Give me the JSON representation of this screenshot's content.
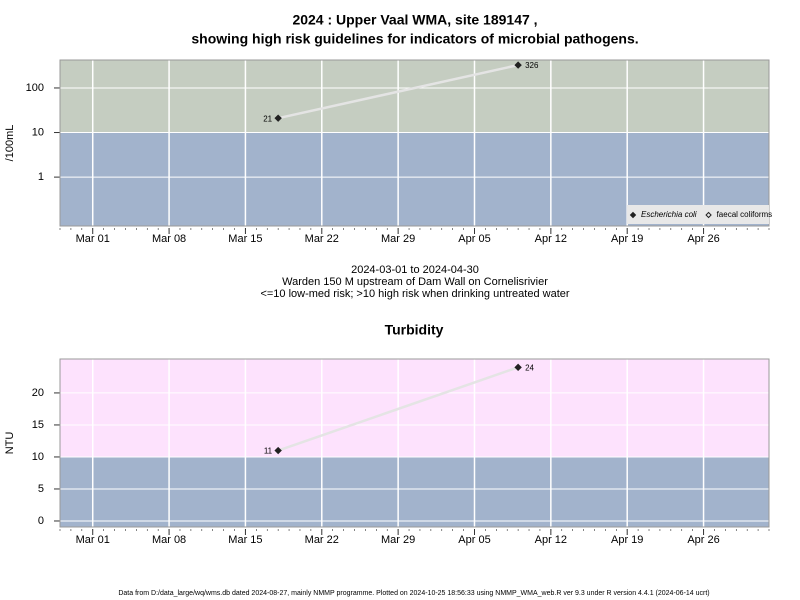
{
  "chart_data": [
    {
      "type": "line",
      "title": [
        "2024 : Upper Vaal WMA, site 189147 ,",
        "showing high risk guidelines for indicators of microbial pathogens."
      ],
      "ylabel": "/100mL",
      "log": true,
      "x": [
        "Mar 18",
        "Apr 09"
      ],
      "series": [
        {
          "name": "Escherichia coli",
          "color": "#222222",
          "marker": "filled",
          "italic": true,
          "values": [
            21,
            326
          ]
        },
        {
          "name": "faecal coliforms",
          "color": "#222222",
          "marker": "open",
          "italic": false,
          "values": [
            null,
            null
          ]
        }
      ],
      "xlim": [
        "Feb 27",
        "May 02"
      ],
      "xticks": [
        "Mar 01",
        "Mar 08",
        "Mar 15",
        "Mar 22",
        "Mar 29",
        "Apr 05",
        "Apr 12",
        "Apr 19",
        "Apr 26"
      ],
      "ylim": [
        0.08,
        424
      ],
      "yticks": [
        1,
        10,
        100
      ],
      "threshold": 10,
      "band_colors": {
        "low": "#a2b3cc",
        "high": "#c5cdc1"
      },
      "line_color": "#e4e4e4",
      "grid": true,
      "legend": "bottom-right",
      "caption": [
        "2024-03-01 to 2024-04-30",
        "Warden 150 M upstream of Dam Wall on Cornelisrivier",
        "<=10 low-med risk; >10 high risk when drinking untreated water"
      ]
    },
    {
      "type": "line",
      "title": "Turbidity",
      "ylabel": "NTU",
      "log": false,
      "x": [
        "Mar 18",
        "Apr 09"
      ],
      "values": [
        11,
        24
      ],
      "color": "#222222",
      "xlim": [
        "Feb 27",
        "May 02"
      ],
      "xticks": [
        "Mar 01",
        "Mar 08",
        "Mar 15",
        "Mar 22",
        "Mar 29",
        "Apr 05",
        "Apr 12",
        "Apr 19",
        "Apr 26"
      ],
      "ylim": [
        -0.94,
        25.3
      ],
      "yticks": [
        0,
        5,
        10,
        15,
        20
      ],
      "threshold": 10,
      "band_colors": {
        "low": "#a2b3cc",
        "high": "#fde2fd"
      },
      "line_color": "#e4e4e4",
      "grid": true
    }
  ],
  "footer": "Data from D:/data_large/wq/wms.db dated 2024-08-27, mainly NMMP programme. Plotted on 2024-10-25 18:56:33 using NMMP_WMA_web.R ver 9.3 under R version 4.4.1 (2024-06-14 ucrt)"
}
